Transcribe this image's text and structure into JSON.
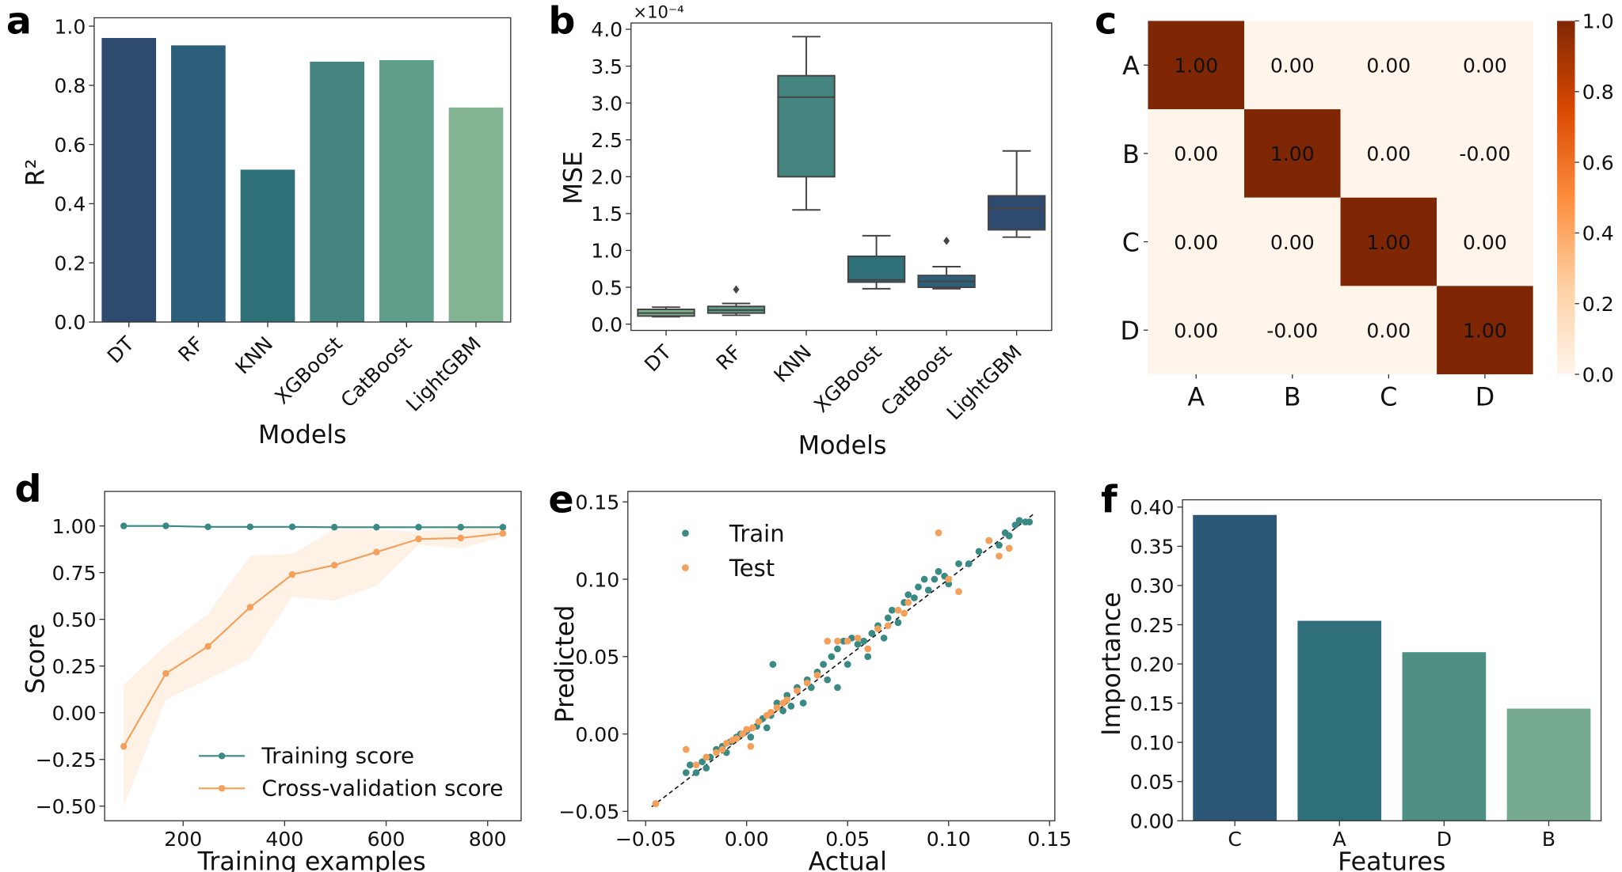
{
  "chart_data": [
    {
      "panel": "a",
      "type": "bar",
      "categories": [
        "DT",
        "RF",
        "KNN",
        "XGBoost",
        "CatBoost",
        "LightGBM"
      ],
      "values": [
        0.96,
        0.935,
        0.515,
        0.88,
        0.885,
        0.725
      ],
      "colors": [
        "#2e4a6e",
        "#2b5f7a",
        "#2e6f78",
        "#44867f",
        "#5f9e8a",
        "#82b493"
      ],
      "xlabel": "Models",
      "ylabel": "R²",
      "ylim": [
        0,
        1.0
      ],
      "yticks": [
        "0.0",
        "0.2",
        "0.4",
        "0.6",
        "0.8",
        "1.0"
      ]
    },
    {
      "panel": "b",
      "type": "box",
      "categories": [
        "DT",
        "RF",
        "KNN",
        "XGBoost",
        "CatBoost",
        "LightGBM"
      ],
      "boxes": [
        {
          "min": 0.1,
          "q1": 0.11,
          "median": 0.15,
          "q3": 0.2,
          "max": 0.23,
          "outliers": []
        },
        {
          "min": 0.12,
          "q1": 0.15,
          "median": 0.19,
          "q3": 0.24,
          "max": 0.28,
          "outliers": [
            0.47
          ]
        },
        {
          "min": 1.55,
          "q1": 2.0,
          "median": 3.08,
          "q3": 3.37,
          "max": 3.9,
          "outliers": []
        },
        {
          "min": 0.48,
          "q1": 0.57,
          "median": 0.6,
          "q3": 0.92,
          "max": 1.2,
          "outliers": []
        },
        {
          "min": 0.48,
          "q1": 0.5,
          "median": 0.58,
          "q3": 0.66,
          "max": 0.78,
          "outliers": [
            1.13
          ]
        },
        {
          "min": 1.18,
          "q1": 1.28,
          "median": 1.57,
          "q3": 1.74,
          "max": 2.35,
          "outliers": []
        }
      ],
      "colors": [
        "#7fb38f",
        "#5f9e8a",
        "#44867f",
        "#2e6f78",
        "#2b5f7a",
        "#2e4a6e"
      ],
      "xlabel": "Models",
      "ylabel": "MSE",
      "scale_label": "×10⁻⁴",
      "ylim": [
        0,
        4.0
      ],
      "yticks": [
        "0.0",
        "0.5",
        "1.0",
        "1.5",
        "2.0",
        "2.5",
        "3.0",
        "3.5",
        "4.0"
      ]
    },
    {
      "panel": "c",
      "type": "heatmap",
      "rows": [
        "A",
        "B",
        "C",
        "D"
      ],
      "cols": [
        "A",
        "B",
        "C",
        "D"
      ],
      "values": [
        [
          1.0,
          0.0,
          0.0,
          0.0
        ],
        [
          0.0,
          1.0,
          0.0,
          -0.0
        ],
        [
          0.0,
          0.0,
          1.0,
          0.0
        ],
        [
          0.0,
          -0.0,
          0.0,
          1.0
        ]
      ],
      "labels": [
        [
          "1.00",
          "0.00",
          "0.00",
          "0.00"
        ],
        [
          "0.00",
          "1.00",
          "0.00",
          "-0.00"
        ],
        [
          "0.00",
          "0.00",
          "1.00",
          "0.00"
        ],
        [
          "0.00",
          "-0.00",
          "0.00",
          "1.00"
        ]
      ],
      "colormap": [
        "#fff5eb",
        "#fdd0a2",
        "#fd8d3c",
        "#d94801",
        "#7f2704"
      ],
      "colorbar_ticks": [
        "0.0",
        "0.2",
        "0.4",
        "0.6",
        "0.8",
        "1.0"
      ]
    },
    {
      "panel": "d",
      "type": "line",
      "x": [
        83,
        166,
        249,
        332,
        415,
        498,
        581,
        664,
        747,
        830
      ],
      "series": [
        {
          "name": "Training score",
          "values": [
            1.0,
            1.0,
            0.995,
            0.995,
            0.995,
            0.993,
            0.993,
            0.993,
            0.993,
            0.993
          ],
          "color": "#3a8a84"
        },
        {
          "name": "Cross-validation score",
          "values": [
            -0.18,
            0.21,
            0.355,
            0.565,
            0.74,
            0.79,
            0.86,
            0.93,
            0.935,
            0.96
          ],
          "color": "#f5a05a",
          "band_lower": [
            -0.5,
            0.07,
            0.18,
            0.29,
            0.62,
            0.6,
            0.68,
            0.9,
            0.88,
            0.94
          ],
          "band_upper": [
            0.15,
            0.36,
            0.53,
            0.84,
            0.85,
            0.98,
            0.98,
            0.97,
            0.99,
            0.98
          ]
        }
      ],
      "xlabel": "Training examples",
      "ylabel": "Score",
      "xticks": [
        "200",
        "400",
        "600",
        "800"
      ],
      "yticks": [
        "−0.50",
        "−0.25",
        "0.00",
        "0.25",
        "0.50",
        "0.75",
        "1.00"
      ],
      "legend": "lower-right"
    },
    {
      "panel": "e",
      "type": "scatter",
      "series": [
        {
          "name": "Train",
          "color": "#3a8a84",
          "points": [
            [
              -0.045,
              -0.045
            ],
            [
              -0.03,
              -0.025
            ],
            [
              -0.028,
              -0.02
            ],
            [
              -0.025,
              -0.025
            ],
            [
              -0.022,
              -0.018
            ],
            [
              -0.02,
              -0.022
            ],
            [
              -0.018,
              -0.015
            ],
            [
              -0.015,
              -0.01
            ],
            [
              -0.012,
              -0.008
            ],
            [
              -0.01,
              -0.012
            ],
            [
              -0.008,
              -0.005
            ],
            [
              -0.005,
              -0.002
            ],
            [
              -0.003,
              0.0
            ],
            [
              0.0,
              0.002
            ],
            [
              0.002,
              -0.002
            ],
            [
              0.005,
              0.005
            ],
            [
              0.008,
              0.01
            ],
            [
              0.01,
              0.004
            ],
            [
              0.012,
              0.012
            ],
            [
              0.015,
              0.02
            ],
            [
              0.018,
              0.015
            ],
            [
              0.02,
              0.025
            ],
            [
              0.022,
              0.018
            ],
            [
              0.025,
              0.03
            ],
            [
              0.028,
              0.02
            ],
            [
              0.03,
              0.035
            ],
            [
              0.032,
              0.03
            ],
            [
              0.035,
              0.04
            ],
            [
              0.038,
              0.045
            ],
            [
              0.04,
              0.035
            ],
            [
              0.042,
              0.05
            ],
            [
              0.045,
              0.055
            ],
            [
              0.048,
              0.06
            ],
            [
              0.05,
              0.045
            ],
            [
              0.052,
              0.062
            ],
            [
              0.055,
              0.058
            ],
            [
              0.058,
              0.06
            ],
            [
              0.06,
              0.05
            ],
            [
              0.062,
              0.065
            ],
            [
              0.065,
              0.07
            ],
            [
              0.068,
              0.062
            ],
            [
              0.07,
              0.075
            ],
            [
              0.072,
              0.08
            ],
            [
              0.075,
              0.072
            ],
            [
              0.078,
              0.085
            ],
            [
              0.08,
              0.09
            ],
            [
              0.083,
              0.088
            ],
            [
              0.085,
              0.095
            ],
            [
              0.088,
              0.1
            ],
            [
              0.09,
              0.093
            ],
            [
              0.093,
              0.1
            ],
            [
              0.095,
              0.105
            ],
            [
              0.098,
              0.102
            ],
            [
              0.1,
              0.097
            ],
            [
              0.105,
              0.11
            ],
            [
              0.11,
              0.11
            ],
            [
              0.115,
              0.118
            ],
            [
              0.12,
              0.125
            ],
            [
              0.125,
              0.122
            ],
            [
              0.128,
              0.13
            ],
            [
              0.13,
              0.128
            ],
            [
              0.133,
              0.135
            ],
            [
              0.135,
              0.138
            ],
            [
              0.138,
              0.137
            ],
            [
              0.14,
              0.137
            ],
            [
              0.013,
              0.045
            ],
            [
              0.045,
              0.03
            ]
          ]
        },
        {
          "name": "Test",
          "color": "#f5a05a",
          "points": [
            [
              -0.045,
              -0.045
            ],
            [
              -0.025,
              -0.02
            ],
            [
              -0.02,
              -0.015
            ],
            [
              -0.015,
              -0.012
            ],
            [
              -0.012,
              -0.01
            ],
            [
              -0.01,
              -0.006
            ],
            [
              -0.007,
              -0.004
            ],
            [
              -0.005,
              -0.003
            ],
            [
              -0.002,
              0.0
            ],
            [
              0.0,
              0.003
            ],
            [
              0.003,
              0.004
            ],
            [
              0.006,
              0.008
            ],
            [
              0.01,
              0.012
            ],
            [
              0.012,
              0.014
            ],
            [
              0.015,
              0.017
            ],
            [
              0.018,
              0.02
            ],
            [
              0.02,
              0.022
            ],
            [
              0.025,
              0.028
            ],
            [
              0.03,
              0.033
            ],
            [
              0.035,
              0.038
            ],
            [
              0.04,
              0.06
            ],
            [
              0.045,
              0.06
            ],
            [
              0.05,
              0.06
            ],
            [
              0.055,
              0.062
            ],
            [
              0.06,
              0.055
            ],
            [
              0.065,
              0.068
            ],
            [
              0.07,
              0.07
            ],
            [
              0.075,
              0.08
            ],
            [
              0.078,
              0.078
            ],
            [
              0.08,
              0.085
            ],
            [
              0.095,
              0.13
            ],
            [
              0.1,
              0.1
            ],
            [
              0.105,
              0.092
            ],
            [
              0.12,
              0.125
            ],
            [
              0.125,
              0.115
            ],
            [
              0.13,
              0.12
            ],
            [
              -0.03,
              -0.01
            ],
            [
              0.002,
              -0.008
            ]
          ]
        }
      ],
      "xlabel": "Actual",
      "ylabel": "Predicted",
      "xlim": [
        -0.05,
        0.15
      ],
      "ylim": [
        -0.05,
        0.15
      ],
      "xticks": [
        "−0.05",
        "0.00",
        "0.05",
        "0.10",
        "0.15"
      ],
      "yticks": [
        "−0.05",
        "0.00",
        "0.05",
        "0.10",
        "0.15"
      ],
      "reference_line": "y = x (dashed)",
      "legend": "top-left"
    },
    {
      "panel": "f",
      "type": "bar",
      "categories": [
        "C",
        "A",
        "D",
        "B"
      ],
      "values": [
        0.39,
        0.255,
        0.215,
        0.143
      ],
      "colors": [
        "#2c5777",
        "#2f6f79",
        "#4e8f84",
        "#76ab8f"
      ],
      "xlabel": "Features",
      "ylabel": "Importance",
      "ylim": [
        0,
        0.4
      ],
      "yticks": [
        "0.00",
        "0.05",
        "0.10",
        "0.15",
        "0.20",
        "0.25",
        "0.30",
        "0.35",
        "0.40"
      ]
    }
  ]
}
